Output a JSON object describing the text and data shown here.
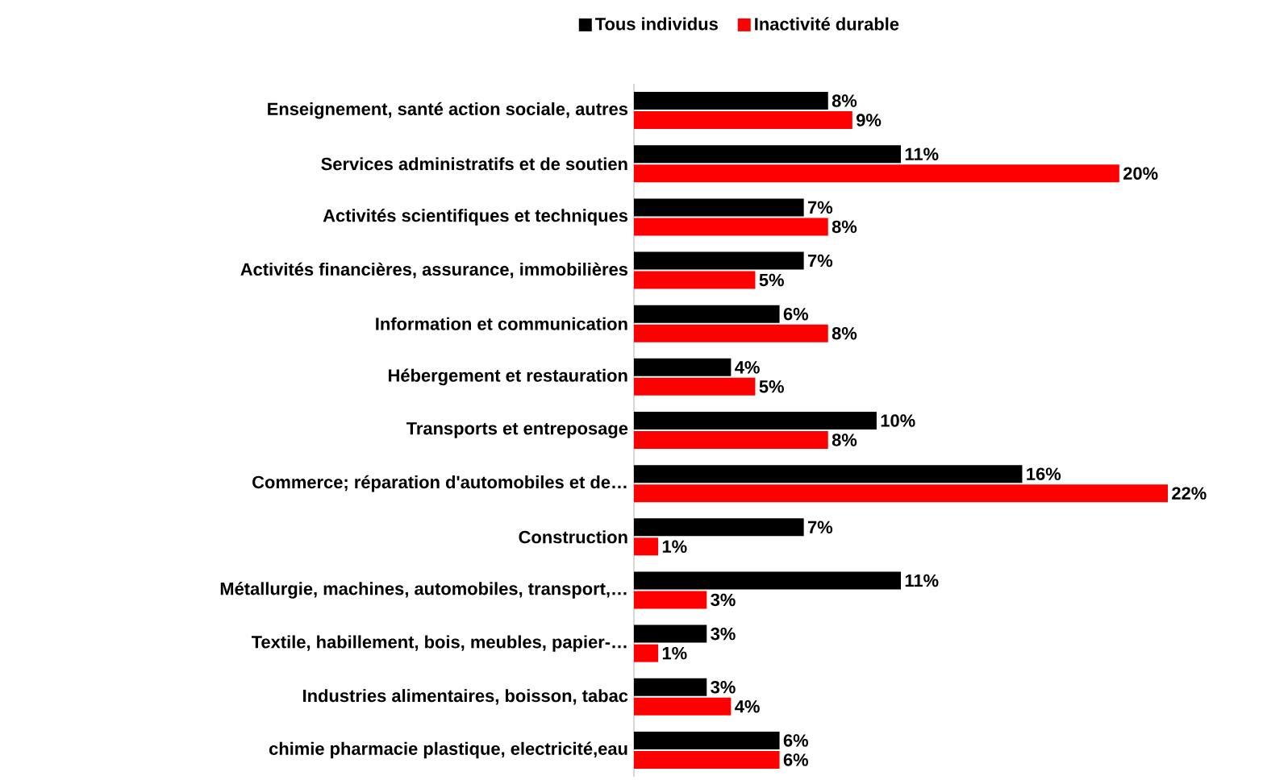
{
  "chart_data": {
    "type": "bar",
    "orientation": "horizontal",
    "legend": "top",
    "categories": [
      "Enseignement, santé action sociale, autres",
      "Services administratifs et de soutien",
      "Activités scientifiques et techniques",
      "Activités financières, assurance, immobilières",
      "Information et communication",
      "Hébergement et restauration",
      "Transports et entreposage",
      "Commerce; réparation d'automobiles et de…",
      "Construction",
      "Métallurgie, machines, automobiles, transport,…",
      "Textile, habillement, bois, meubles, papier-…",
      "Industries alimentaires, boisson, tabac",
      "chimie pharmacie plastique, electricité,eau"
    ],
    "series": [
      {
        "name": "Tous individus",
        "color": "#000000",
        "values": [
          8,
          11,
          7,
          7,
          6,
          4,
          10,
          16,
          7,
          11,
          3,
          3,
          6
        ],
        "value_labels": [
          "8%",
          "11%",
          "7%",
          "7%",
          "6%",
          "4%",
          "10%",
          "16%",
          "7%",
          "11%",
          "3%",
          "3%",
          "6%"
        ]
      },
      {
        "name": "Inactivité durable",
        "color": "#ff0000",
        "values": [
          9,
          20,
          8,
          5,
          8,
          5,
          8,
          22,
          1,
          3,
          1,
          4,
          6
        ],
        "value_labels": [
          "9%",
          "20%",
          "8%",
          "5%",
          "8%",
          "5%",
          "8%",
          "22%",
          "1%",
          "3%",
          "1%",
          "4%",
          "6%"
        ]
      }
    ]
  }
}
